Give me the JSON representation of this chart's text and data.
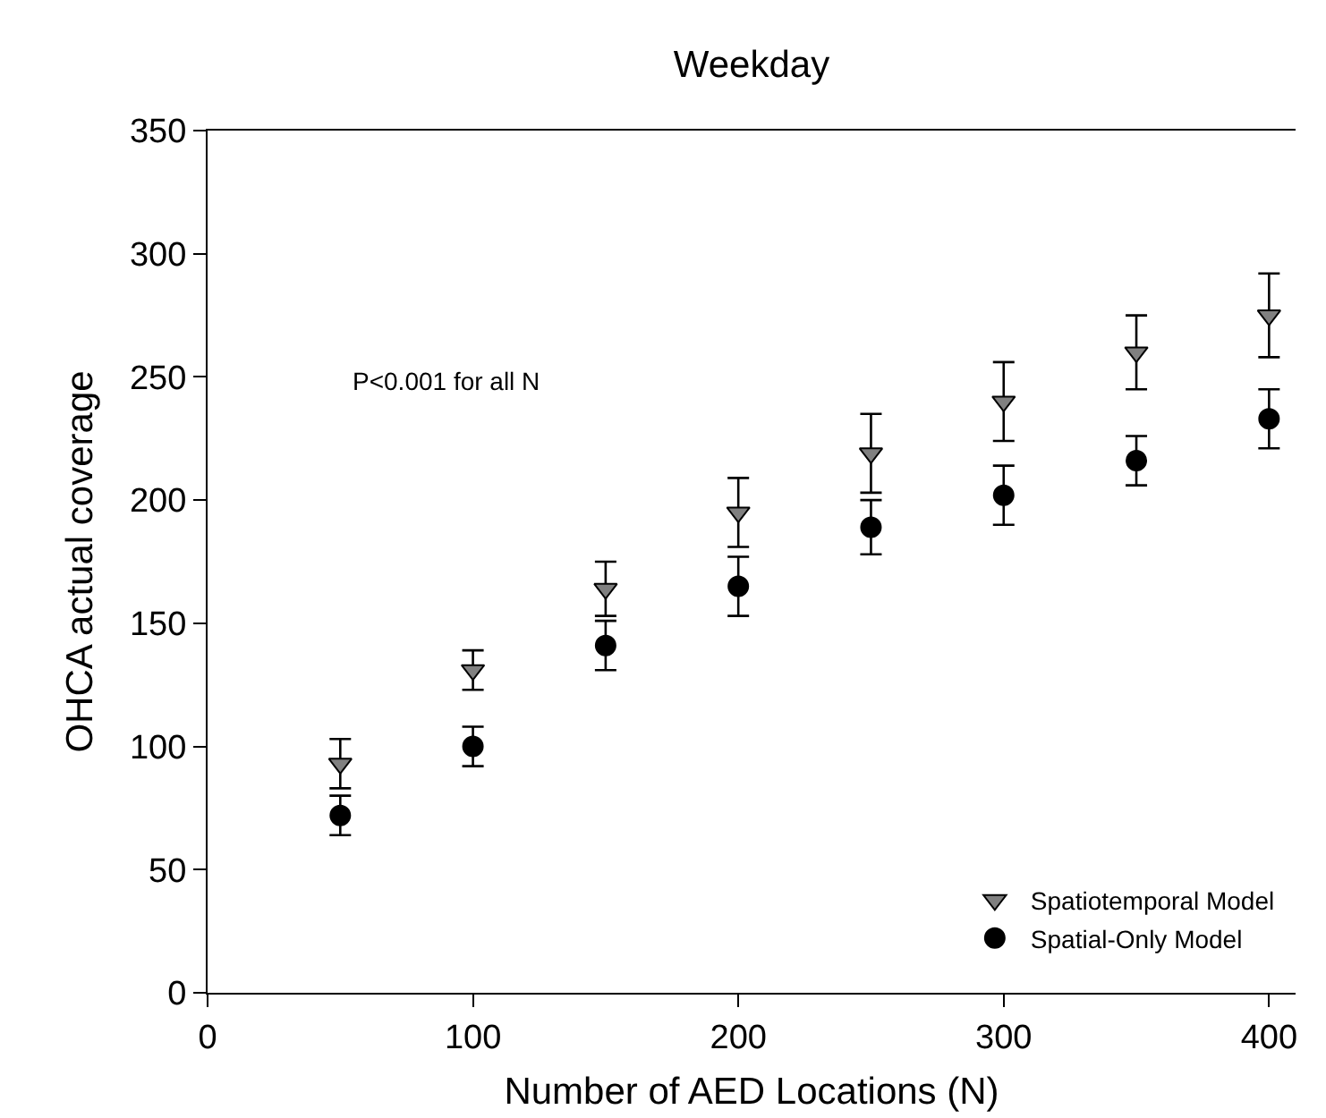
{
  "chart_data": {
    "type": "scatter",
    "title": "Weekday",
    "xlabel": "Number of AED Locations (N)",
    "ylabel": "OHCA actual coverage",
    "x": [
      50,
      100,
      150,
      200,
      250,
      300,
      350,
      400
    ],
    "series": [
      {
        "name": "Spatiotemporal Model",
        "color": "#808080",
        "marker": "triangle",
        "values": [
          93,
          131,
          164,
          195,
          219,
          240,
          260,
          275
        ],
        "errors": [
          10,
          8,
          11,
          14,
          16,
          16,
          15,
          17
        ]
      },
      {
        "name": "Spatial-Only Model",
        "color": "#000000",
        "marker": "circle",
        "values": [
          72,
          100,
          141,
          165,
          189,
          202,
          216,
          233
        ],
        "errors": [
          8,
          8,
          10,
          12,
          11,
          12,
          10,
          12
        ]
      }
    ],
    "xlim": [
      0,
      410
    ],
    "xticks": [
      0,
      100,
      200,
      300,
      400
    ],
    "ylim": [
      0,
      350
    ],
    "yticks": [
      0,
      50,
      100,
      150,
      200,
      250,
      300,
      350
    ],
    "grid": false,
    "legend": "bottom right",
    "annotations": [
      "P<0.001 for all N"
    ]
  }
}
